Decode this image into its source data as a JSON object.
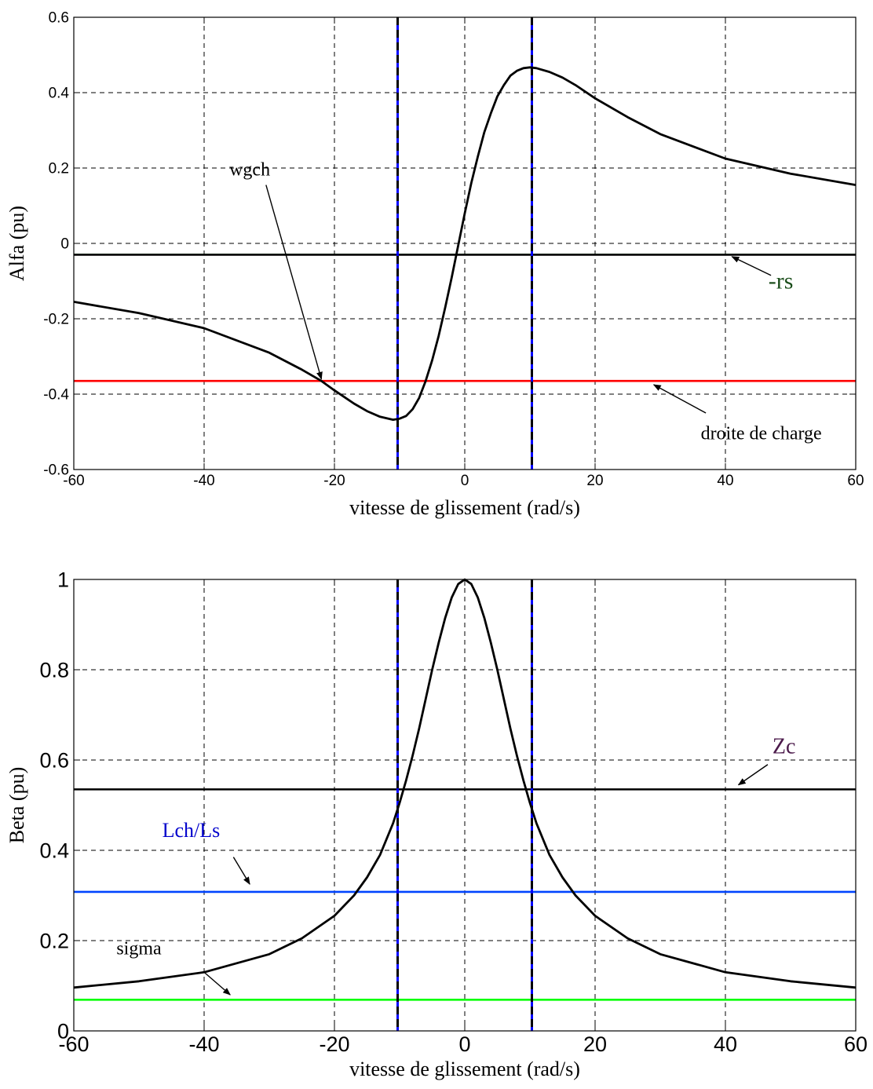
{
  "chart_data": [
    {
      "type": "line",
      "xlabel": "vitesse de glissement (rad/s)",
      "ylabel": "Alfa (pu)",
      "xlim": [
        -60,
        60
      ],
      "ylim": [
        -0.6,
        0.6
      ],
      "xticks": [
        -60,
        -40,
        -20,
        0,
        20,
        40,
        60
      ],
      "yticks": [
        -0.6,
        -0.4,
        -0.2,
        0,
        0.2,
        0.4,
        0.6
      ],
      "xtick_labels": [
        "-60",
        "-40",
        "-20",
        "0",
        "20",
        "40",
        "60"
      ],
      "ytick_labels": [
        "-0.6",
        "-0.4",
        "-0.2",
        "0",
        "0.2",
        "0.4",
        "0.6"
      ],
      "grid": true,
      "series": [
        {
          "color": "#000000",
          "x": [
            -60,
            -50,
            -40,
            -30,
            -25,
            -22,
            -20,
            -17,
            -15,
            -13,
            -11,
            -10,
            -9,
            -8,
            -7,
            -6,
            -5,
            -4,
            -3,
            -2,
            -1,
            0,
            1,
            2,
            3,
            4,
            5,
            6,
            7,
            8,
            9,
            10,
            11,
            13,
            15,
            17,
            20,
            25,
            30,
            40,
            50,
            60
          ],
          "y": [
            -0.155,
            -0.185,
            -0.225,
            -0.29,
            -0.335,
            -0.365,
            -0.39,
            -0.425,
            -0.445,
            -0.46,
            -0.468,
            -0.465,
            -0.458,
            -0.44,
            -0.41,
            -0.365,
            -0.31,
            -0.245,
            -0.17,
            -0.09,
            -0.005,
            0.08,
            0.16,
            0.23,
            0.295,
            0.345,
            0.39,
            0.42,
            0.445,
            0.458,
            0.465,
            0.467,
            0.465,
            0.455,
            0.44,
            0.42,
            0.385,
            0.335,
            0.29,
            0.225,
            0.185,
            0.155
          ]
        }
      ],
      "hlines": [
        {
          "y": -0.03,
          "color": "#00ff00",
          "width": 2.2
        },
        {
          "y": -0.03,
          "color": "#000000",
          "width": 2.6
        },
        {
          "y": -0.365,
          "color": "#ff0000",
          "width": 2.6
        }
      ],
      "vlines": [
        {
          "x": -10.3,
          "color": "#0000ff",
          "overlay": "#000000"
        },
        {
          "x": 10.3,
          "color": "#0000ff",
          "overlay": "#000000"
        }
      ],
      "annotations": [
        {
          "text": "wgch",
          "color": "#000000",
          "size": 24,
          "text_at": [
            -33,
            0.18
          ],
          "from": [
            -30.5,
            0.155
          ],
          "to": [
            -22,
            -0.36
          ]
        },
        {
          "text": "-rs",
          "color": "#1a4d1a",
          "size": 30,
          "text_at": [
            48.5,
            -0.12
          ],
          "from": [
            47,
            -0.085
          ],
          "to": [
            41,
            -0.035
          ]
        },
        {
          "text": "droite de charge",
          "color": "#000000",
          "size": 24,
          "text_at": [
            45.5,
            -0.52
          ],
          "from": [
            37,
            -0.45
          ],
          "to": [
            29,
            -0.375
          ]
        }
      ]
    },
    {
      "type": "line",
      "xlabel": "vitesse de glissement (rad/s)",
      "ylabel": "Beta (pu)",
      "xlim": [
        -60,
        60
      ],
      "ylim": [
        0,
        1
      ],
      "xticks": [
        -60,
        -40,
        -20,
        0,
        20,
        40,
        60
      ],
      "yticks": [
        0,
        0.2,
        0.4,
        0.6,
        0.8,
        1
      ],
      "xtick_labels": [
        "-60",
        "-40",
        "-20",
        "0",
        "20",
        "40",
        "60"
      ],
      "ytick_labels": [
        "0",
        "0.2",
        "0.4",
        "0.6",
        "0.8",
        "1"
      ],
      "grid": true,
      "series": [
        {
          "color": "#000000",
          "x": [
            -60,
            -50,
            -40,
            -30,
            -25,
            -20,
            -17,
            -15,
            -13,
            -11,
            -10,
            -9,
            -8,
            -7,
            -6,
            -5,
            -4,
            -3,
            -2,
            -1,
            0,
            1,
            2,
            3,
            4,
            5,
            6,
            7,
            8,
            9,
            10,
            11,
            13,
            15,
            17,
            20,
            25,
            30,
            40,
            50,
            60
          ],
          "y": [
            0.096,
            0.11,
            0.13,
            0.17,
            0.205,
            0.255,
            0.3,
            0.34,
            0.39,
            0.46,
            0.505,
            0.555,
            0.61,
            0.67,
            0.735,
            0.8,
            0.86,
            0.915,
            0.96,
            0.99,
            1.0,
            0.99,
            0.96,
            0.915,
            0.86,
            0.8,
            0.735,
            0.67,
            0.61,
            0.555,
            0.505,
            0.46,
            0.39,
            0.34,
            0.3,
            0.255,
            0.205,
            0.17,
            0.13,
            0.11,
            0.096
          ]
        }
      ],
      "hlines": [
        {
          "y": 0.535,
          "color": "#000000",
          "width": 2.6
        },
        {
          "y": 0.308,
          "color": "#0044ff",
          "width": 2.6
        },
        {
          "y": 0.069,
          "color": "#00ff00",
          "width": 2.6
        }
      ],
      "vlines": [
        {
          "x": -10.3,
          "color": "#0000ff",
          "overlay": "#000000"
        },
        {
          "x": 10.3,
          "color": "#0000ff",
          "overlay": "#000000"
        }
      ],
      "annotations": [
        {
          "text": "Zc",
          "color": "#4b1a4b",
          "size": 28,
          "text_at": [
            49,
            0.615
          ],
          "from": [
            46.5,
            0.59
          ],
          "to": [
            42,
            0.545
          ]
        },
        {
          "text": "Lch/Ls",
          "color": "#0000cc",
          "size": 26,
          "text_at": [
            -42,
            0.43
          ],
          "from": [
            -35.5,
            0.385
          ],
          "to": [
            -33,
            0.325
          ]
        },
        {
          "text": "sigma",
          "color": "#000000",
          "size": 24,
          "text_at": [
            -50,
            0.17
          ],
          "from": [
            -40,
            0.13
          ],
          "to": [
            -36,
            0.08
          ]
        }
      ]
    }
  ]
}
